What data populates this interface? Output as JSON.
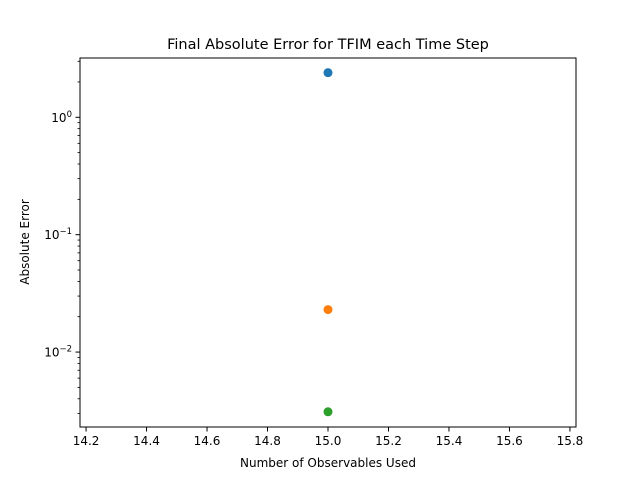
{
  "chart_data": {
    "type": "scatter",
    "title": "Final Absolute Error for TFIM each Time Step",
    "xlabel": "Number of Observables Used",
    "ylabel": "Absolute Error",
    "xlim": [
      14.18,
      15.82
    ],
    "ylim": [
      0.0023,
      3.2
    ],
    "yscale": "log",
    "grid": false,
    "legend": "none",
    "x_ticks": [
      14.2,
      14.4,
      14.6,
      14.8,
      15.0,
      15.2,
      15.4,
      15.6,
      15.8
    ],
    "x_tick_labels": [
      "14.2",
      "14.4",
      "14.6",
      "14.8",
      "15.0",
      "15.2",
      "15.4",
      "15.6",
      "15.8"
    ],
    "y_ticks": [
      {
        "value": 0.01,
        "base": "10",
        "exp": "−2"
      },
      {
        "value": 0.1,
        "base": "10",
        "exp": "−1"
      },
      {
        "value": 1,
        "base": "10",
        "exp": "0"
      }
    ],
    "series": [
      {
        "x": [
          15.0
        ],
        "values": [
          2.4
        ],
        "color": "#1f77b4"
      },
      {
        "x": [
          15.0
        ],
        "values": [
          0.023
        ],
        "color": "#ff7f0e"
      },
      {
        "x": [
          15.0
        ],
        "values": [
          0.0031
        ],
        "color": "#2ca02c"
      }
    ]
  }
}
